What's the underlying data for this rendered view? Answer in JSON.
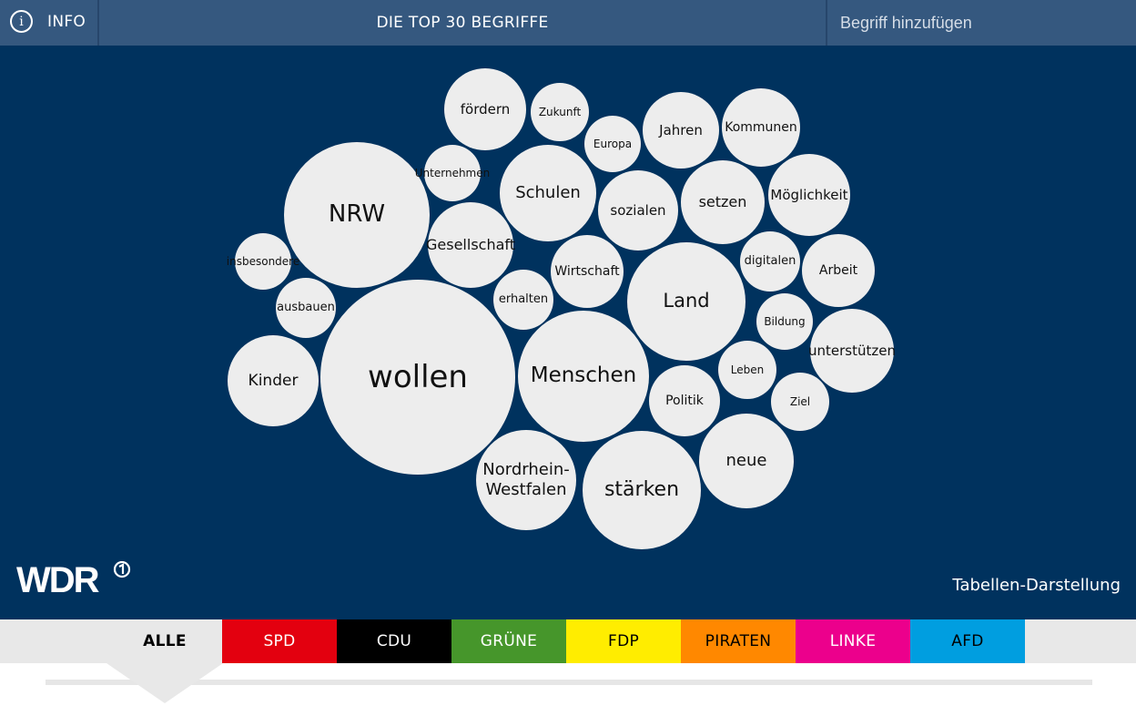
{
  "header": {
    "info_label": "INFO",
    "info_icon": "i",
    "title": "DIE TOP 30 BEGRIFFE",
    "search_placeholder": "Begriff hinzufügen"
  },
  "bubbles": [
    {
      "id": "wollen",
      "label": "wollen"
    },
    {
      "id": "nrw",
      "label": "NRW"
    },
    {
      "id": "menschen",
      "label": "Menschen"
    },
    {
      "id": "land",
      "label": "Land"
    },
    {
      "id": "staerken",
      "label": "stärken"
    },
    {
      "id": "schulen",
      "label": "Schulen"
    },
    {
      "id": "nordrhein-westfalen",
      "label": "Nordrhein-\nWestfalen"
    },
    {
      "id": "neue",
      "label": "neue"
    },
    {
      "id": "kinder",
      "label": "Kinder"
    },
    {
      "id": "gesellschaft",
      "label": "Gesellschaft"
    },
    {
      "id": "foerdern",
      "label": "fördern"
    },
    {
      "id": "moeglichkeit",
      "label": "Möglichkeit"
    },
    {
      "id": "setzen",
      "label": "setzen"
    },
    {
      "id": "jahren",
      "label": "Jahren"
    },
    {
      "id": "kommunen",
      "label": "Kommunen"
    },
    {
      "id": "sozialen",
      "label": "sozialen"
    },
    {
      "id": "unterstuetzen",
      "label": "unterstützen"
    },
    {
      "id": "wirtschaft",
      "label": "Wirtschaft"
    },
    {
      "id": "arbeit",
      "label": "Arbeit"
    },
    {
      "id": "politik",
      "label": "Politik"
    },
    {
      "id": "erhalten",
      "label": "erhalten"
    },
    {
      "id": "ausbauen",
      "label": "ausbauen"
    },
    {
      "id": "digitalen",
      "label": "digitalen"
    },
    {
      "id": "insbesondere",
      "label": "insbesondere"
    },
    {
      "id": "unternehmen",
      "label": "Unternehmen"
    },
    {
      "id": "zukunft",
      "label": "Zukunft"
    },
    {
      "id": "europa",
      "label": "Europa"
    },
    {
      "id": "bildung",
      "label": "Bildung"
    },
    {
      "id": "leben",
      "label": "Leben"
    },
    {
      "id": "ziel",
      "label": "Ziel"
    }
  ],
  "footer": {
    "logo_text": "WDR",
    "table_link": "Tabellen-Darstellung"
  },
  "parties": [
    {
      "id": "alle",
      "label": "ALLE",
      "bg": "#e8e8e8",
      "fg": "#000000",
      "active": true
    },
    {
      "id": "spd",
      "label": "SPD",
      "bg": "#e3000f",
      "fg": "#ffffff"
    },
    {
      "id": "cdu",
      "label": "CDU",
      "bg": "#000000",
      "fg": "#ffffff"
    },
    {
      "id": "gruene",
      "label": "GRÜNE",
      "bg": "#46962b",
      "fg": "#ffffff"
    },
    {
      "id": "fdp",
      "label": "FDP",
      "bg": "#ffed00",
      "fg": "#000000"
    },
    {
      "id": "piraten",
      "label": "PIRATEN",
      "bg": "#ff8800",
      "fg": "#000000"
    },
    {
      "id": "linke",
      "label": "LINKE",
      "bg": "#ec008c",
      "fg": "#ffffff"
    },
    {
      "id": "afd",
      "label": "AFD",
      "bg": "#009ee0",
      "fg": "#000000"
    }
  ],
  "colors": {
    "header_bg": "#35587f",
    "main_bg": "#00325e",
    "bubble": "#ededed"
  }
}
